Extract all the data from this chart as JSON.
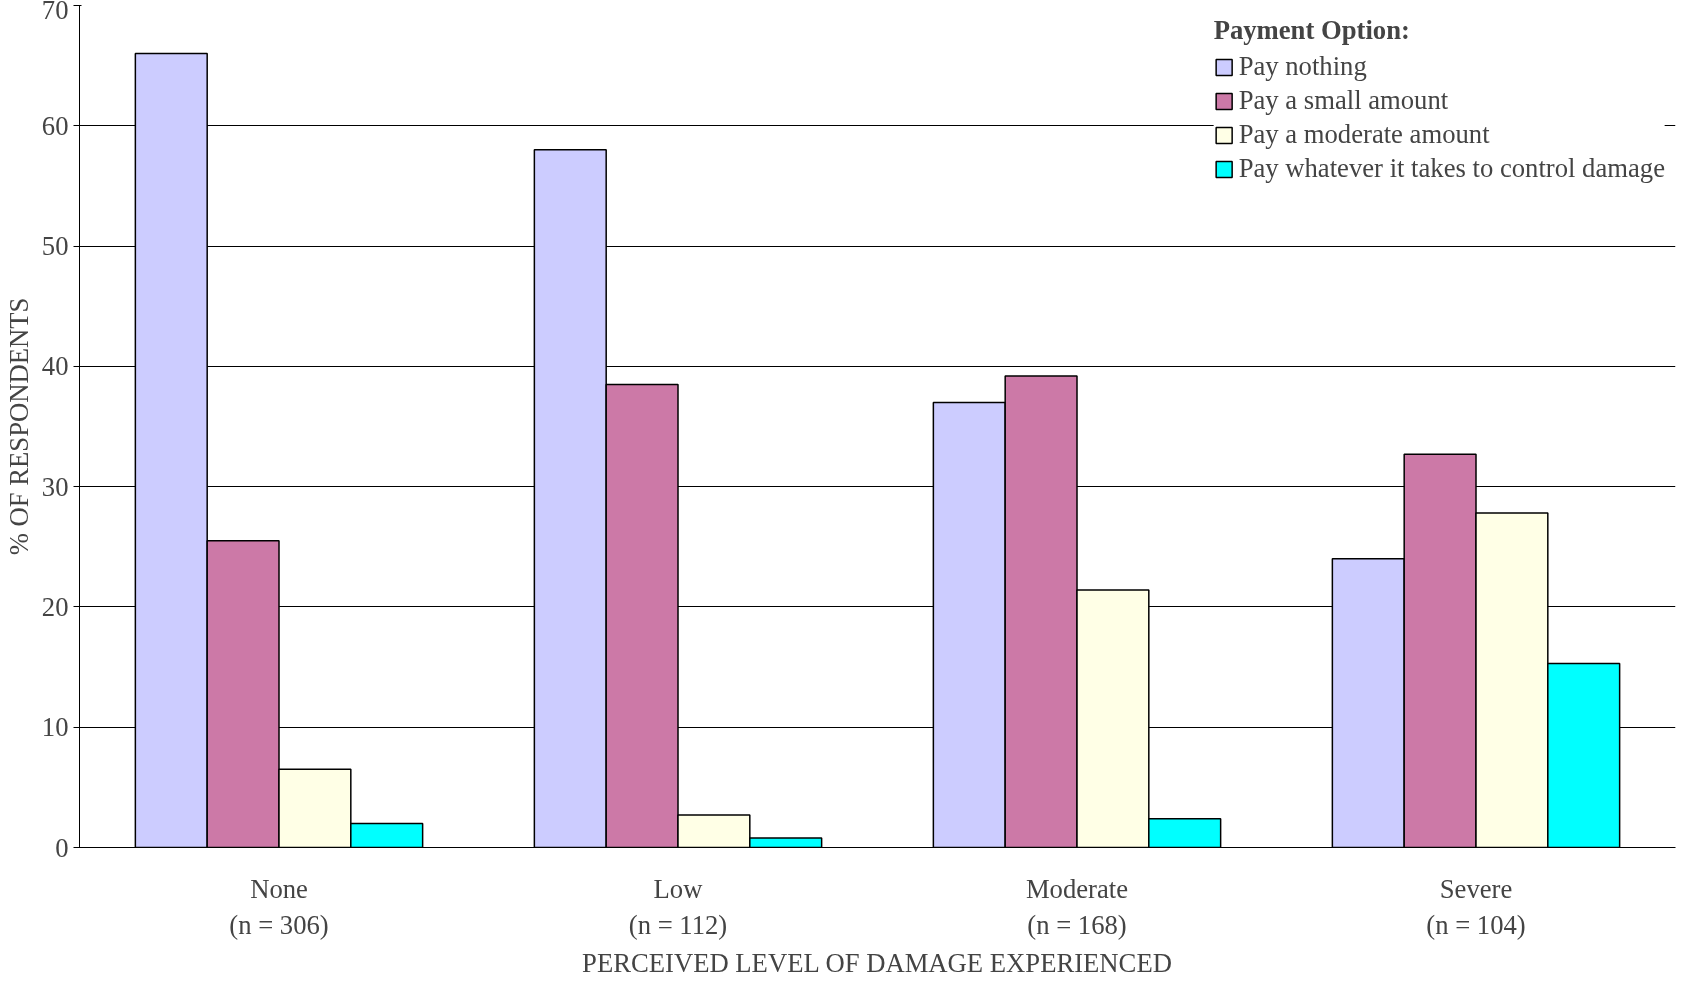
{
  "chart_data": {
    "type": "bar",
    "xlabel": "PERCEIVED LEVEL OF DAMAGE EXPERIENCED",
    "ylabel": "% OF RESPONDENTS",
    "legend_title": "Payment Option:",
    "categories": [
      "None\n(n = 306)",
      "Low\n(n = 112)",
      "Moderate\n(n = 168)",
      "Severe\n(n = 104)"
    ],
    "series": [
      {
        "name": "Pay nothing",
        "color": "#ccccff",
        "values": [
          66,
          58,
          37,
          24
        ]
      },
      {
        "name": "Pay a small amount",
        "color": "#cc79a7",
        "values": [
          25.5,
          38.5,
          39.2,
          32.7
        ]
      },
      {
        "name": "Pay a moderate amount",
        "color": "#ffffe6",
        "values": [
          6.5,
          2.7,
          21.4,
          27.8
        ]
      },
      {
        "name": "Pay whatever it takes to control damage",
        "color": "#00ffff",
        "values": [
          2.0,
          0.8,
          2.4,
          15.3
        ]
      }
    ],
    "ylim": [
      0,
      70
    ],
    "yticks": [
      0,
      10,
      20,
      30,
      40,
      50,
      60,
      70
    ],
    "grid": "y",
    "legend": "top right"
  }
}
